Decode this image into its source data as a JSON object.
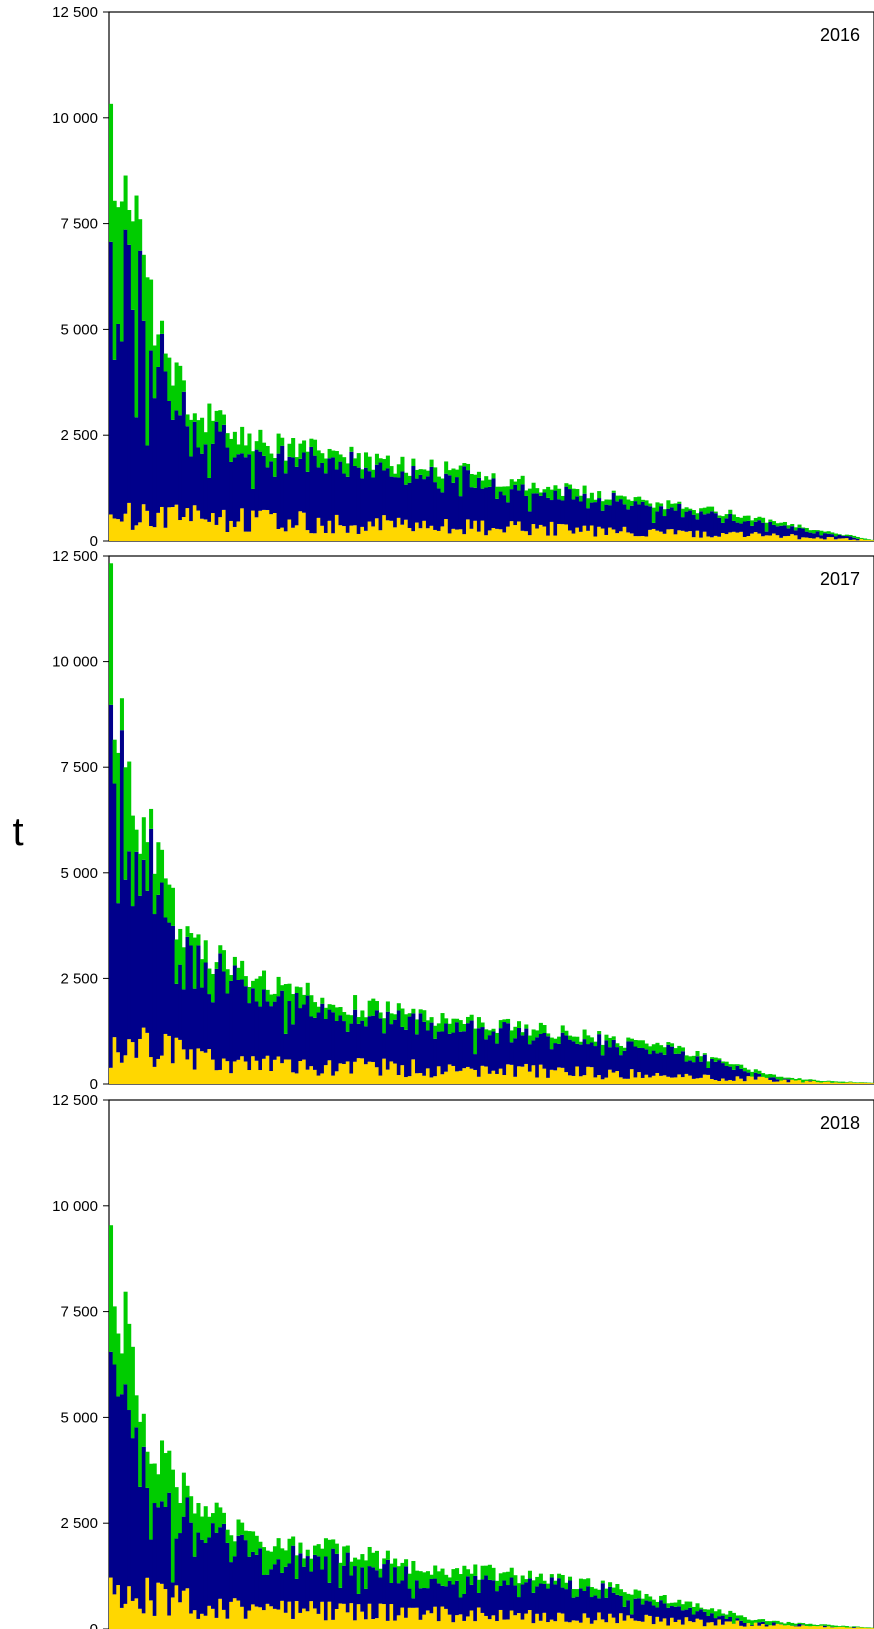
{
  "colors": {
    "yellow": "#ffd700",
    "navy": "#00008b",
    "green": "#00cc00",
    "frame": "#000000"
  },
  "figure": {
    "ylabel": "t"
  },
  "chart_data": [
    {
      "type": "bar",
      "stacked": true,
      "title": "2016",
      "ylabel": "t",
      "ylim": [
        0,
        12500
      ],
      "yticks": [
        0,
        2500,
        5000,
        7500,
        10000,
        12500
      ],
      "ytick_labels": [
        "0",
        "2 500",
        "5 000",
        "7 500",
        "10 000",
        "12 500"
      ],
      "n_bars": 210,
      "trend": {
        "total": [
          [
            0,
            11200
          ],
          [
            1,
            9300
          ],
          [
            3,
            8500
          ],
          [
            5,
            7800
          ],
          [
            8,
            6800
          ],
          [
            10,
            5800
          ],
          [
            13,
            4800
          ],
          [
            16,
            4100
          ],
          [
            19,
            3600
          ],
          [
            23,
            3200
          ],
          [
            28,
            2800
          ],
          [
            35,
            2500
          ],
          [
            45,
            2250
          ],
          [
            60,
            2050
          ],
          [
            75,
            1800
          ],
          [
            85,
            1700
          ],
          [
            100,
            1600
          ],
          [
            115,
            1300
          ],
          [
            130,
            1150
          ],
          [
            150,
            900
          ],
          [
            170,
            650
          ],
          [
            185,
            400
          ],
          [
            195,
            250
          ],
          [
            205,
            100
          ],
          [
            209,
            30
          ]
        ],
        "yellow": [
          [
            0,
            600
          ],
          [
            20,
            500
          ],
          [
            60,
            380
          ],
          [
            100,
            300
          ],
          [
            140,
            220
          ],
          [
            180,
            120
          ],
          [
            209,
            20
          ]
        ],
        "green": [
          [
            0,
            2800
          ],
          [
            6,
            1700
          ],
          [
            15,
            900
          ],
          [
            30,
            450
          ],
          [
            60,
            300
          ],
          [
            100,
            220
          ],
          [
            150,
            150
          ],
          [
            209,
            20
          ]
        ]
      },
      "series": [
        {
          "name": "",
          "color": "#ffd700"
        },
        {
          "name": "",
          "color": "#00008b"
        },
        {
          "name": "",
          "color": "#00cc00"
        }
      ]
    },
    {
      "type": "bar",
      "stacked": true,
      "title": "2017",
      "ylabel": "t",
      "ylim": [
        0,
        12500
      ],
      "yticks": [
        0,
        2500,
        5000,
        7500,
        10000,
        12500
      ],
      "ytick_labels": [
        "0",
        "2 500",
        "5 000",
        "7 500",
        "10 000",
        "12 500"
      ],
      "n_bars": 210,
      "trend": {
        "total": [
          [
            0,
            11900
          ],
          [
            1,
            9000
          ],
          [
            3,
            8600
          ],
          [
            5,
            7200
          ],
          [
            8,
            6300
          ],
          [
            12,
            5500
          ],
          [
            16,
            4300
          ],
          [
            20,
            3400
          ],
          [
            25,
            3100
          ],
          [
            30,
            2900
          ],
          [
            40,
            2500
          ],
          [
            55,
            2100
          ],
          [
            70,
            1800
          ],
          [
            85,
            1600
          ],
          [
            100,
            1450
          ],
          [
            115,
            1300
          ],
          [
            130,
            1150
          ],
          [
            145,
            950
          ],
          [
            155,
            850
          ],
          [
            165,
            600
          ],
          [
            175,
            350
          ],
          [
            185,
            150
          ],
          [
            195,
            80
          ],
          [
            209,
            30
          ]
        ],
        "yellow": [
          [
            0,
            700
          ],
          [
            10,
            800
          ],
          [
            25,
            500
          ],
          [
            60,
            380
          ],
          [
            100,
            300
          ],
          [
            140,
            220
          ],
          [
            170,
            120
          ],
          [
            209,
            20
          ]
        ],
        "green": [
          [
            0,
            3000
          ],
          [
            5,
            1500
          ],
          [
            15,
            800
          ],
          [
            30,
            450
          ],
          [
            60,
            300
          ],
          [
            100,
            220
          ],
          [
            150,
            150
          ],
          [
            209,
            15
          ]
        ]
      },
      "series": [
        {
          "name": "",
          "color": "#ffd700"
        },
        {
          "name": "",
          "color": "#00008b"
        },
        {
          "name": "",
          "color": "#00cc00"
        }
      ]
    },
    {
      "type": "bar",
      "stacked": true,
      "title": "2018",
      "ylabel": "t",
      "ylim": [
        0,
        12500
      ],
      "yticks": [
        0,
        2500,
        5000,
        7500,
        10000,
        12500
      ],
      "ytick_labels": [
        "0",
        "2 500",
        "5 000",
        "7 500",
        "10 000",
        "12 500"
      ],
      "n_bars": 210,
      "trend": {
        "total": [
          [
            0,
            8300
          ],
          [
            2,
            7800
          ],
          [
            4,
            7000
          ],
          [
            6,
            5900
          ],
          [
            9,
            5100
          ],
          [
            12,
            4300
          ],
          [
            15,
            3800
          ],
          [
            20,
            3300
          ],
          [
            25,
            2800
          ],
          [
            35,
            2300
          ],
          [
            50,
            2000
          ],
          [
            65,
            1800
          ],
          [
            80,
            1550
          ],
          [
            100,
            1350
          ],
          [
            120,
            1200
          ],
          [
            135,
            1000
          ],
          [
            150,
            750
          ],
          [
            165,
            500
          ],
          [
            175,
            250
          ],
          [
            185,
            150
          ],
          [
            200,
            80
          ],
          [
            209,
            30
          ]
        ],
        "yellow": [
          [
            0,
            900
          ],
          [
            10,
            700
          ],
          [
            25,
            500
          ],
          [
            60,
            380
          ],
          [
            100,
            300
          ],
          [
            140,
            220
          ],
          [
            170,
            120
          ],
          [
            209,
            20
          ]
        ],
        "green": [
          [
            0,
            2800
          ],
          [
            5,
            1700
          ],
          [
            15,
            900
          ],
          [
            30,
            500
          ],
          [
            60,
            350
          ],
          [
            100,
            250
          ],
          [
            150,
            150
          ],
          [
            209,
            15
          ]
        ]
      },
      "series": [
        {
          "name": "",
          "color": "#ffd700"
        },
        {
          "name": "",
          "color": "#00008b"
        },
        {
          "name": "",
          "color": "#00cc00"
        }
      ]
    }
  ]
}
